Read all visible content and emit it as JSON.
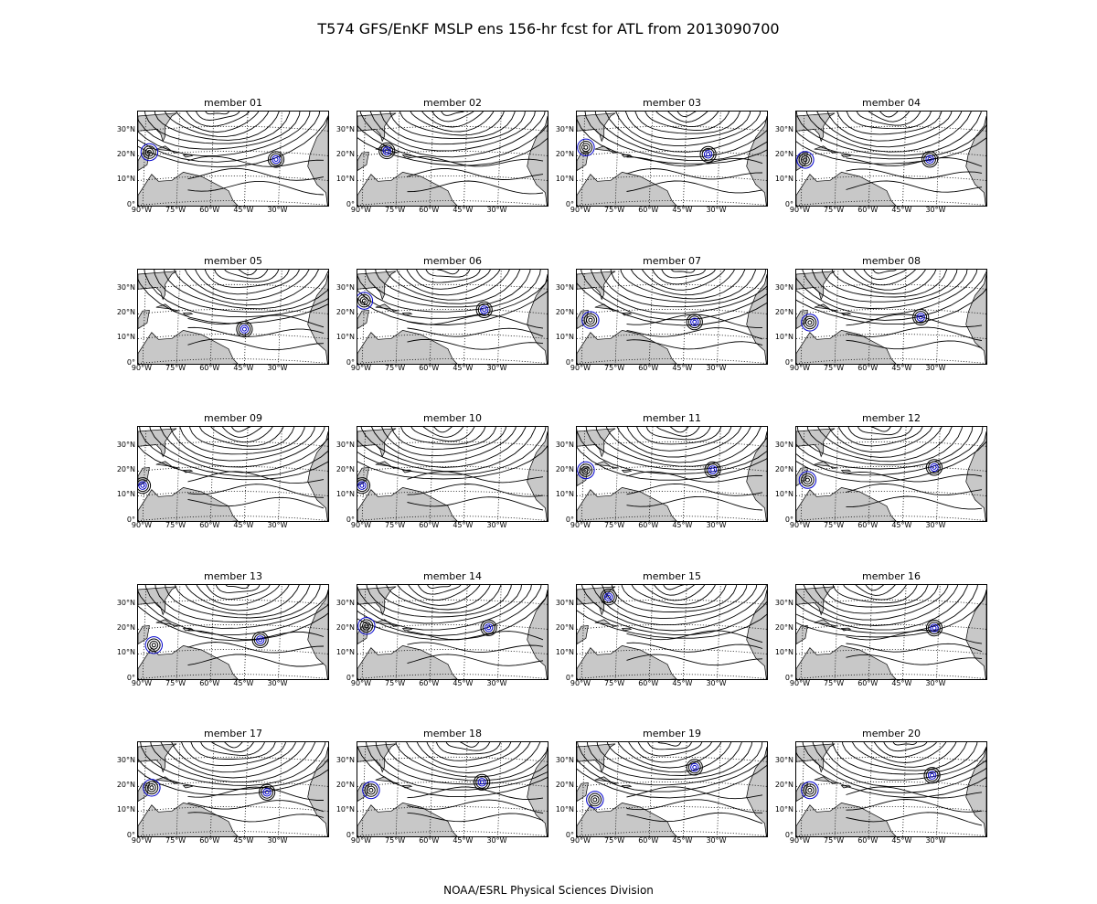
{
  "title": "T574 GFS/EnKF MSLP ens 156-hr fcst for ATL from 2013090700",
  "footer": "NOAA/ESRL Physical Sciences Division",
  "lat_labels": [
    "30°N",
    "20°N",
    "10°N",
    "0°"
  ],
  "lon_labels": [
    "90°W",
    "75°W",
    "60°W",
    "45°W",
    "30°W"
  ],
  "contour_color": "#000000",
  "highlight_color": "#0000cc",
  "land_color": "#c8c8c8",
  "members": [
    {
      "label": "member 01",
      "storm": {
        "lon": -31,
        "lat": 17
      },
      "low2": {
        "lon": -87,
        "lat": 21
      }
    },
    {
      "label": "member 02",
      "storm": {
        "lon": -79,
        "lat": 21
      }
    },
    {
      "label": "member 03",
      "storm": {
        "lon": -34,
        "lat": 19
      },
      "low2": {
        "lon": -88,
        "lat": 23
      }
    },
    {
      "label": "member 04",
      "storm": {
        "lon": -33,
        "lat": 17
      },
      "low2": {
        "lon": -88,
        "lat": 18
      }
    },
    {
      "label": "member 05",
      "storm": {
        "lon": -45,
        "lat": 12
      }
    },
    {
      "label": "member 06",
      "storm": {
        "lon": -36,
        "lat": 20
      },
      "low2": {
        "lon": -89,
        "lat": 25
      }
    },
    {
      "label": "member 07",
      "storm": {
        "lon": -40,
        "lat": 15
      },
      "low2": {
        "lon": -86,
        "lat": 17
      }
    },
    {
      "label": "member 08",
      "storm": {
        "lon": -37,
        "lat": 17
      },
      "low2": {
        "lon": -86,
        "lat": 16
      }
    },
    {
      "label": "member 09",
      "storm": {
        "lon": -90,
        "lat": 14
      }
    },
    {
      "label": "member 10",
      "storm": {
        "lon": -90,
        "lat": 14
      }
    },
    {
      "label": "member 11",
      "storm": {
        "lon": -32,
        "lat": 19
      },
      "low2": {
        "lon": -88,
        "lat": 20
      }
    },
    {
      "label": "member 12",
      "storm": {
        "lon": -31,
        "lat": 20
      },
      "low2": {
        "lon": -87,
        "lat": 16
      }
    },
    {
      "label": "member 13",
      "storm": {
        "lon": -38,
        "lat": 14
      },
      "low2": {
        "lon": -85,
        "lat": 13
      }
    },
    {
      "label": "member 14",
      "storm": {
        "lon": -34,
        "lat": 19
      },
      "low2": {
        "lon": -88,
        "lat": 21
      }
    },
    {
      "label": "member 15",
      "storm": {
        "lon": -78,
        "lat": 32
      }
    },
    {
      "label": "member 16",
      "storm": {
        "lon": -31,
        "lat": 19
      }
    },
    {
      "label": "member 17",
      "storm": {
        "lon": -35,
        "lat": 16
      },
      "low2": {
        "lon": -86,
        "lat": 19
      }
    },
    {
      "label": "member 18",
      "storm": {
        "lon": -37,
        "lat": 20
      },
      "low2": {
        "lon": -86,
        "lat": 18
      }
    },
    {
      "label": "member 19",
      "storm": {
        "lon": -40,
        "lat": 26
      },
      "low2": {
        "lon": -84,
        "lat": 14
      }
    },
    {
      "label": "member 20",
      "storm": {
        "lon": -32,
        "lat": 23
      },
      "low2": {
        "lon": -86,
        "lat": 18
      }
    }
  ]
}
